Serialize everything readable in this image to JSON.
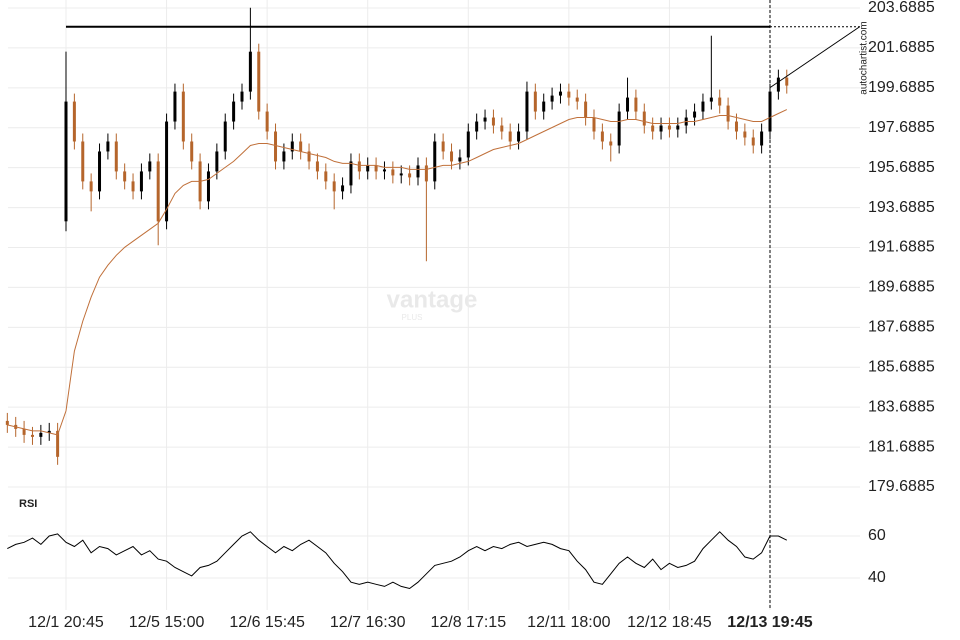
{
  "chart_data": {
    "type": "candlestick",
    "categories": [
      null,
      null,
      null,
      null,
      null,
      null,
      null,
      "12/1 20:45",
      null,
      null,
      null,
      null,
      null,
      null,
      null,
      null,
      null,
      null,
      null,
      "12/5 15:00",
      null,
      null,
      null,
      null,
      null,
      null,
      null,
      null,
      null,
      null,
      null,
      "12/6 15:45",
      null,
      null,
      null,
      null,
      null,
      null,
      null,
      null,
      null,
      null,
      null,
      "12/7 16:30",
      null,
      null,
      null,
      null,
      null,
      null,
      null,
      null,
      null,
      null,
      null,
      "12/8 17:15",
      null,
      null,
      null,
      null,
      null,
      null,
      null,
      null,
      null,
      null,
      null,
      "12/11 18:00",
      null,
      null,
      null,
      null,
      null,
      null,
      null,
      null,
      null,
      null,
      null,
      "12/12 18:45",
      null,
      null,
      null,
      null,
      null,
      null,
      null,
      null,
      null,
      null,
      null,
      "12/13 19:45",
      null,
      null
    ],
    "open": [
      183.0,
      182.8,
      182.6,
      182.3,
      182.2,
      182.4,
      182.5,
      193.0,
      199,
      197,
      195,
      194.5,
      196.5,
      197,
      195.5,
      195,
      194.5,
      195.5,
      196,
      193,
      198,
      199.5,
      197,
      196,
      194,
      195.5,
      196.5,
      198,
      199,
      199.5,
      201.5,
      198.5,
      197.5,
      196,
      196.5,
      197,
      196.5,
      196,
      195.5,
      195,
      194.5,
      194.8,
      196,
      195.5,
      195.8,
      195.5,
      195.6,
      195.3,
      195.4,
      195.2,
      195.8,
      195,
      197,
      196.5,
      196,
      196.2,
      197.5,
      198,
      198.2,
      197.8,
      197.5,
      197,
      197.5,
      199.5,
      198.5,
      199,
      199.3,
      199.5,
      199.2,
      199,
      198.2,
      197.5,
      197,
      196.8,
      198.5,
      199.2,
      198.5,
      197.8,
      197.5,
      197.8,
      197.6,
      197.8,
      198.2,
      198.5,
      199,
      199.2,
      198.8,
      198,
      197.5,
      197.2,
      196.8,
      197.5,
      199.5,
      200.2
    ],
    "high": [
      183.4,
      183.2,
      183.0,
      182.7,
      182.8,
      182.9,
      182.9,
      201.5,
      199.4,
      197.4,
      195.4,
      196.9,
      197.4,
      197.4,
      195.9,
      195.4,
      195.9,
      196.4,
      196.4,
      198.4,
      199.9,
      199.9,
      197.4,
      196.4,
      195.9,
      196.9,
      198.4,
      199.4,
      199.9,
      203.7,
      201.9,
      198.9,
      197.9,
      196.9,
      197.4,
      197.4,
      196.9,
      196.4,
      195.9,
      195.4,
      195.2,
      196.4,
      196.4,
      196.2,
      196.2,
      196.0,
      196.0,
      195.8,
      195.8,
      196.2,
      196.2,
      197.4,
      197.4,
      196.9,
      196.6,
      197.9,
      198.4,
      198.6,
      198.6,
      198.2,
      197.9,
      197.9,
      200.0,
      199.9,
      199.4,
      199.7,
      199.9,
      199.9,
      199.6,
      199.4,
      198.6,
      197.9,
      197.4,
      198.9,
      200.2,
      199.6,
      198.9,
      198.2,
      198.2,
      198.2,
      198.2,
      198.6,
      198.9,
      199.4,
      202.3,
      199.6,
      199.2,
      198.4,
      197.9,
      197.6,
      197.9,
      199.9,
      200.6,
      200.6
    ],
    "low": [
      182.4,
      182.2,
      181.9,
      181.8,
      181.8,
      182.0,
      180.8,
      192.5,
      196.6,
      194.6,
      193.5,
      194.1,
      196.1,
      195.1,
      194.6,
      194.1,
      194.1,
      195.1,
      191.8,
      192.6,
      197.6,
      196.6,
      195.6,
      193.6,
      193.6,
      195.1,
      196.1,
      197.6,
      198.6,
      199.1,
      198.1,
      197.1,
      195.6,
      195.6,
      196.1,
      196.1,
      195.6,
      195.1,
      194.6,
      193.6,
      194.1,
      194.4,
      195.1,
      195.1,
      195.1,
      195.1,
      194.9,
      194.9,
      194.8,
      194.8,
      191.0,
      194.6,
      196.1,
      195.6,
      195.6,
      195.8,
      197.1,
      197.6,
      197.4,
      197.1,
      196.6,
      196.6,
      197.1,
      198.1,
      198.1,
      198.6,
      198.9,
      198.8,
      198.6,
      197.8,
      197.1,
      196.6,
      196.0,
      196.4,
      198.1,
      198.1,
      197.4,
      197.1,
      197.1,
      197.2,
      197.2,
      197.4,
      197.8,
      198.1,
      198.6,
      198.4,
      197.6,
      197.1,
      196.8,
      196.4,
      196.4,
      197.1,
      199.1,
      199.4
    ],
    "close": [
      182.8,
      182.6,
      182.3,
      182.2,
      182.4,
      182.5,
      181.2,
      199,
      197,
      195,
      194.5,
      196.5,
      197,
      195.5,
      195,
      194.5,
      195.5,
      196,
      193,
      198,
      199.5,
      197,
      196,
      194,
      195.5,
      196.5,
      198,
      199,
      199.5,
      201.5,
      198.5,
      197.5,
      196,
      196.5,
      197,
      196.5,
      196,
      195.5,
      195,
      194.5,
      194.8,
      196,
      195.5,
      195.8,
      195.5,
      195.6,
      195.3,
      195.4,
      195.2,
      195.8,
      195,
      197,
      196.5,
      196,
      196.2,
      197.5,
      198,
      198.2,
      197.8,
      197.5,
      197,
      197.5,
      199.5,
      198.5,
      199,
      199.3,
      199.5,
      199.2,
      199,
      198.2,
      197.5,
      197,
      196.8,
      198.5,
      199.2,
      198.5,
      197.8,
      197.5,
      197.8,
      197.6,
      197.8,
      198.2,
      198.5,
      199,
      199.2,
      198.8,
      198,
      197.5,
      197.2,
      196.8,
      197.5,
      199.5,
      200.2,
      199.8
    ],
    "up_color": "#000000",
    "down_color": "#b5652b",
    "moving_average": {
      "color": "#c0703a",
      "values": [
        182.8,
        182.7,
        182.6,
        182.5,
        182.5,
        182.4,
        182.3,
        183.5,
        186.5,
        188.0,
        189.2,
        190.2,
        190.8,
        191.3,
        191.7,
        192.0,
        192.3,
        192.6,
        192.9,
        193.6,
        194.4,
        194.8,
        195.0,
        195.0,
        195.1,
        195.4,
        195.7,
        196.0,
        196.4,
        196.8,
        196.9,
        196.9,
        196.8,
        196.7,
        196.6,
        196.5,
        196.4,
        196.3,
        196.2,
        196.0,
        195.9,
        195.9,
        195.8,
        195.8,
        195.8,
        195.7,
        195.7,
        195.7,
        195.6,
        195.6,
        195.6,
        195.7,
        195.8,
        195.8,
        195.9,
        196.0,
        196.2,
        196.4,
        196.6,
        196.7,
        196.8,
        196.9,
        197.1,
        197.3,
        197.5,
        197.7,
        197.9,
        198.1,
        198.2,
        198.2,
        198.2,
        198.1,
        198.0,
        198.0,
        198.1,
        198.1,
        198.0,
        197.9,
        197.9,
        197.9,
        197.9,
        198.0,
        198.0,
        198.1,
        198.2,
        198.3,
        198.3,
        198.2,
        198.1,
        198.0,
        198.0,
        198.2,
        198.4,
        198.6
      ]
    },
    "ylim": [
      179.6885,
      203.6885
    ],
    "yticks": [
      179.6885,
      181.6885,
      183.6885,
      185.6885,
      187.6885,
      189.6885,
      191.6885,
      193.6885,
      195.6885,
      197.6885,
      199.6885,
      201.6885,
      203.6885
    ],
    "grid": true,
    "resistance": {
      "start": 7,
      "value": 202.75
    },
    "trendline": {
      "x": [
        91,
        101.7
      ],
      "values": [
        199.7,
        202.75
      ]
    },
    "marker_index": 91,
    "source": "autochartist.com",
    "watermark": "vantage",
    "watermark_sub": "PLUS",
    "rsi": {
      "title": "RSI",
      "color": "#000000",
      "ylim": [
        27,
        68
      ],
      "yticks": [
        40,
        60
      ],
      "values": [
        54,
        56,
        57,
        59,
        56,
        60,
        61,
        57,
        55,
        58,
        52,
        55,
        54,
        51,
        53,
        55,
        51,
        53,
        49,
        48,
        45,
        43,
        41,
        45,
        46,
        48,
        52,
        56,
        60,
        62,
        58,
        55,
        52,
        55,
        53,
        56,
        58,
        55,
        52,
        47,
        43,
        38,
        37,
        38,
        37,
        36,
        38,
        36,
        35,
        38,
        42,
        46,
        47,
        48,
        50,
        53,
        55,
        53,
        55,
        54,
        56,
        57,
        55,
        56,
        57,
        56,
        54,
        53,
        48,
        44,
        38,
        37,
        42,
        47,
        50,
        47,
        45,
        49,
        44,
        47,
        45,
        46,
        48,
        54,
        58,
        62,
        58,
        55,
        50,
        49,
        52,
        60,
        60,
        58
      ]
    }
  }
}
